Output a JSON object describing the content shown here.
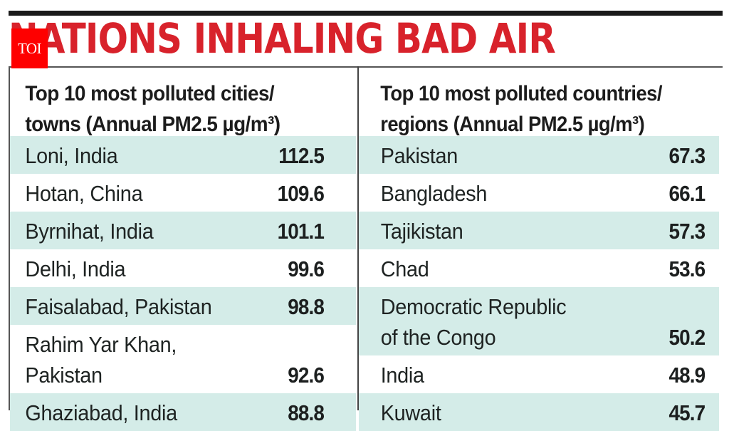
{
  "headline": {
    "text": "NATIONS INHALING BAD AIR",
    "color": "#d8222b"
  },
  "badge": {
    "text": "TOI",
    "color": "#fe0000"
  },
  "colors": {
    "shaded_row": "#d4ece8",
    "rule": "#1a1a1a"
  },
  "cities": {
    "title_line1": "Top 10 most polluted cities/",
    "title_line2": "towns (Annual PM2.5 µg/m³)",
    "rows": [
      {
        "name": "Loni, India",
        "value": "112.5"
      },
      {
        "name": "Hotan, China",
        "value": "109.6"
      },
      {
        "name": "Byrnihat, India",
        "value": "101.1"
      },
      {
        "name": "Delhi, India",
        "value": "99.6"
      },
      {
        "name": "Faisalabad, Pakistan",
        "value": "98.8"
      },
      {
        "name_line1": "Rahim Yar Khan,",
        "name_line2": "Pakistan",
        "value": "92.6"
      },
      {
        "name": "Ghaziabad, India",
        "value": "88.8"
      }
    ]
  },
  "countries": {
    "title_line1": "Top 10 most polluted countries/",
    "title_line2": "regions (Annual PM2.5 µg/m³)",
    "rows": [
      {
        "name": "Pakistan",
        "value": "67.3"
      },
      {
        "name": "Bangladesh",
        "value": "66.1"
      },
      {
        "name": "Tajikistan",
        "value": "57.3"
      },
      {
        "name": "Chad",
        "value": "53.6"
      },
      {
        "name_line1": "Democratic Republic",
        "name_line2": "of the Congo",
        "value": "50.2"
      },
      {
        "name": "India",
        "value": "48.9"
      },
      {
        "name": "Kuwait",
        "value": "45.7"
      }
    ]
  }
}
